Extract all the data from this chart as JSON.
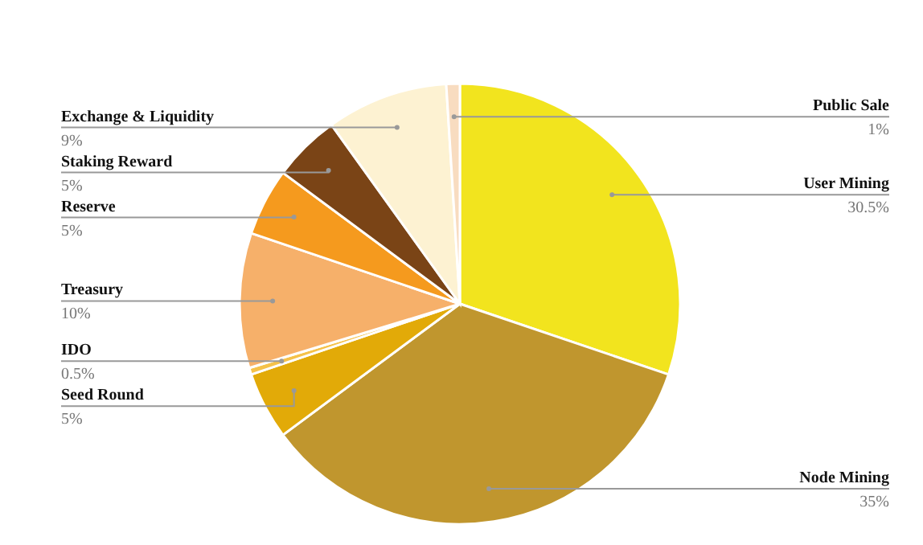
{
  "chart_data": {
    "type": "pie",
    "categories": [
      "User Mining",
      "Node Mining",
      "Seed Round",
      "IDO",
      "Treasury",
      "Reserve",
      "Staking Reward",
      "Exchange & Liquidity",
      "Public Sale"
    ],
    "values": [
      30.5,
      35,
      5,
      0.5,
      10,
      5,
      5,
      9,
      1
    ],
    "colors": [
      "#f2e41e",
      "#c0962e",
      "#e2aa08",
      "#f5c24a",
      "#f6b06a",
      "#f59a1e",
      "#7a4416",
      "#fdf2d2",
      "#f8dcc0"
    ],
    "value_labels": [
      "30.5%",
      "35%",
      "5%",
      "0.5%",
      "10%",
      "5%",
      "5%",
      "9%",
      "1%"
    ]
  }
}
